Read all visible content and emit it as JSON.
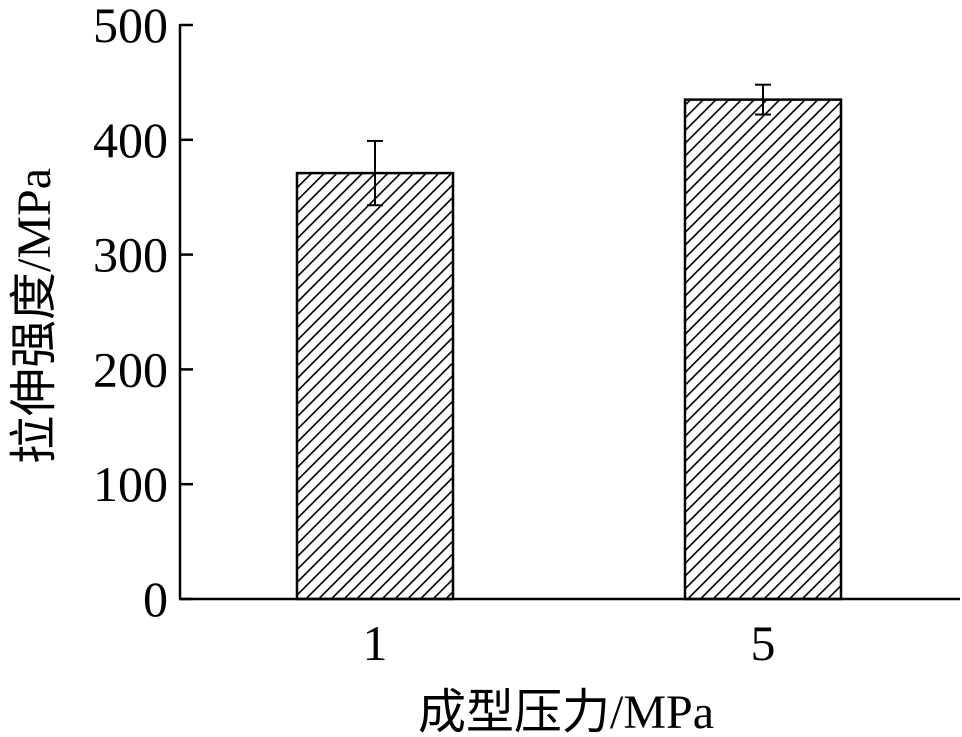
{
  "chart_data": {
    "type": "bar",
    "title": "",
    "xlabel": "成型压力/MPa",
    "ylabel": "拉伸强度/MPa",
    "categories": [
      "1",
      "5"
    ],
    "values": [
      371,
      435
    ],
    "error": [
      28,
      13
    ],
    "ylim": [
      0,
      500
    ],
    "yticks": [
      0,
      100,
      200,
      300,
      400,
      500
    ],
    "grid": false,
    "bar_fill": "diagonal-hatch",
    "colors": {
      "bar_stroke": "#000000",
      "hatch": "#000000",
      "background": "#ffffff"
    }
  }
}
